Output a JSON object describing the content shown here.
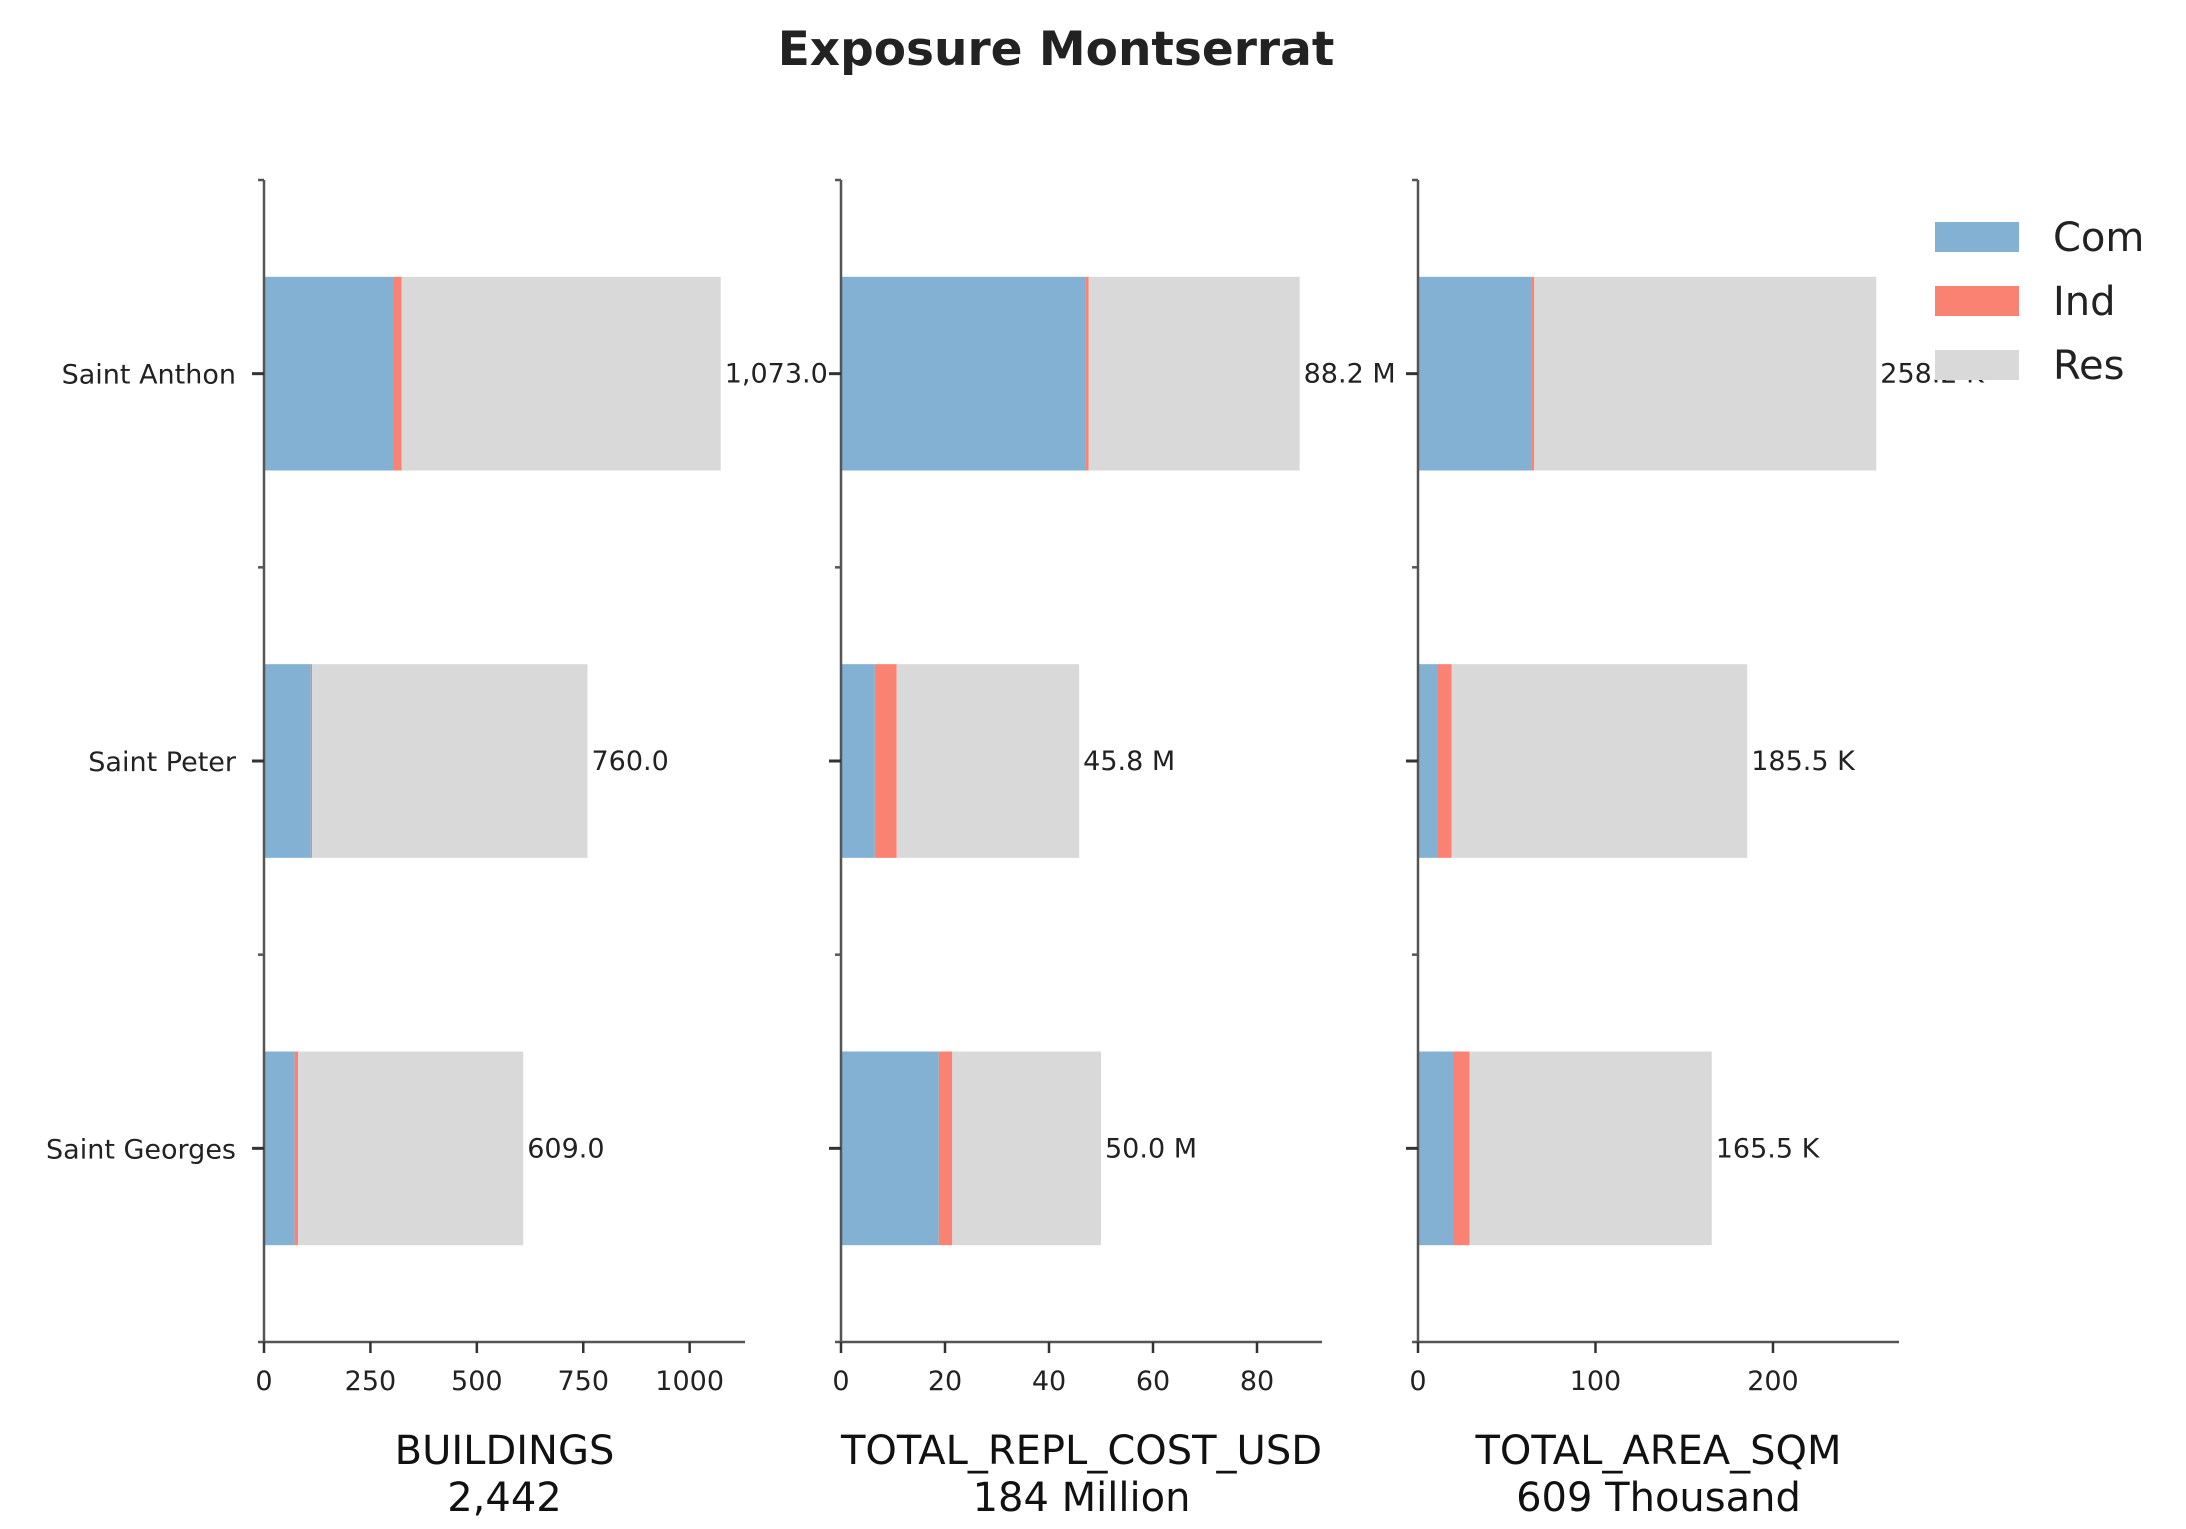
{
  "chart_data": {
    "type": "bar",
    "orientation": "horizontal",
    "stacked": true,
    "title": "Exposure Montserrat",
    "categories": [
      "Saint Anthon",
      "Saint Peter",
      "Saint Georges"
    ],
    "legend": {
      "placement": "top-right, outside",
      "entries": [
        {
          "name": "Com",
          "color": "#82b1d3"
        },
        {
          "name": "Ind",
          "color": "#fa8272"
        },
        {
          "name": "Res",
          "color": "#d9d9d9"
        }
      ]
    },
    "grid": false,
    "panels": [
      {
        "xlabel": "BUILDINGS",
        "total_label": "2,442",
        "xlim": [
          0,
          1130
        ],
        "xticks": [
          0,
          250,
          500,
          750,
          1000
        ],
        "tick_labels": [
          "0",
          "250",
          "500",
          "750",
          "1000"
        ],
        "series": [
          {
            "name": "Com",
            "values": [
              303,
              110,
              72
            ]
          },
          {
            "name": "Ind",
            "values": [
              20,
              3,
              8
            ]
          },
          {
            "name": "Res",
            "values": [
              750,
              647,
              529
            ]
          }
        ],
        "totals": [
          1073,
          760,
          609
        ],
        "total_text": [
          "1,073.0",
          "760.0",
          "609.0"
        ]
      },
      {
        "xlabel": "TOTAL_REPL_COST_USD",
        "total_label": "184 Million",
        "xlim": [
          0,
          92.5
        ],
        "xticks": [
          0,
          20,
          40,
          60,
          80
        ],
        "tick_labels": [
          "0",
          "20",
          "40",
          "60",
          "80"
        ],
        "series": [
          {
            "name": "Com",
            "values": [
              47,
              6.5,
              18.8
            ]
          },
          {
            "name": "Ind",
            "values": [
              0.6,
              4.2,
              2.6
            ]
          },
          {
            "name": "Res",
            "values": [
              40.6,
              35.1,
              28.6
            ]
          }
        ],
        "totals": [
          88.2,
          45.8,
          50.0
        ],
        "total_text": [
          "88.2 M",
          "45.8 M",
          "50.0 M"
        ]
      },
      {
        "xlabel": "TOTAL_AREA_SQM",
        "total_label": "609 Thousand",
        "xlim": [
          0,
          271
        ],
        "xticks": [
          0,
          100,
          200
        ],
        "tick_labels": [
          "0",
          "100",
          "200"
        ],
        "series": [
          {
            "name": "Com",
            "values": [
              64,
              11,
              20
            ]
          },
          {
            "name": "Ind",
            "values": [
              1.5,
              8,
              9
            ]
          },
          {
            "name": "Res",
            "values": [
              192.7,
              166.5,
              136.5
            ]
          }
        ],
        "totals": [
          258.2,
          185.5,
          165.5
        ],
        "total_text": [
          "258.2 K",
          "185.5 K",
          "165.5 K"
        ]
      }
    ]
  }
}
